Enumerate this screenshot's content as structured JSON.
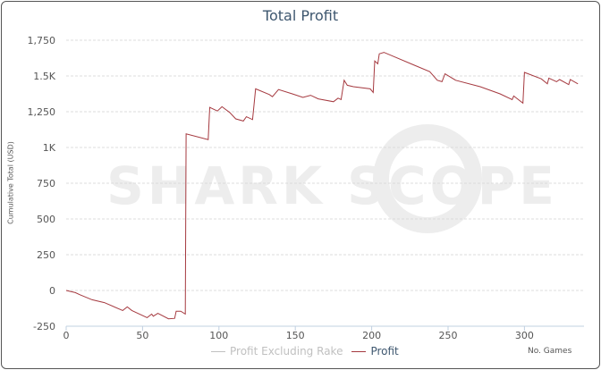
{
  "chart_data": {
    "type": "line",
    "title": "Total Profit",
    "xlabel": "No. Games",
    "ylabel": "Cumulative Total (USD)",
    "xlim": [
      0,
      339
    ],
    "ylim": [
      -250,
      1750
    ],
    "x_ticks": [
      "0",
      "50",
      "100",
      "150",
      "200",
      "250",
      "300"
    ],
    "x_tick_values": [
      0,
      50,
      100,
      150,
      200,
      250,
      300
    ],
    "y_ticks": [
      "-250",
      "0",
      "250",
      "500",
      "750",
      "1K",
      "1,250",
      "1.5K",
      "1,750"
    ],
    "y_tick_values": [
      -250,
      0,
      250,
      500,
      750,
      1000,
      1250,
      1500,
      1750
    ],
    "grid": true,
    "legend_placement": "bottom",
    "watermark": "SHARK SCOPE",
    "series": [
      {
        "name": "Profit Excluding Rake",
        "color": "#c0c0c0",
        "hidden": true,
        "x": [],
        "y": []
      },
      {
        "name": "Profit",
        "color": "#a5393f",
        "hidden": false,
        "x": [
          0,
          6,
          9,
          17,
          25,
          37,
          40,
          43,
          53,
          56,
          57,
          60,
          67,
          71,
          72,
          75,
          78,
          78.5,
          93,
          94,
          99,
          102,
          107,
          111,
          116,
          118,
          122,
          124,
          133,
          135,
          139,
          148,
          155,
          160,
          165,
          175,
          178,
          180,
          182,
          184,
          188,
          199,
          201,
          202,
          204,
          205,
          208,
          228,
          238,
          243,
          246,
          248,
          255,
          271,
          284,
          292,
          293,
          299,
          300,
          311,
          315,
          316,
          321,
          323,
          329,
          330,
          335
        ],
        "y": [
          0,
          -15,
          -30,
          -65,
          -85,
          -140,
          -115,
          -140,
          -190,
          -165,
          -180,
          -160,
          -198,
          -195,
          -145,
          -145,
          -165,
          1095,
          1055,
          1280,
          1255,
          1285,
          1245,
          1200,
          1185,
          1215,
          1195,
          1410,
          1370,
          1355,
          1405,
          1375,
          1350,
          1365,
          1340,
          1320,
          1345,
          1335,
          1470,
          1435,
          1425,
          1410,
          1385,
          1605,
          1585,
          1655,
          1665,
          1575,
          1530,
          1470,
          1460,
          1515,
          1470,
          1425,
          1375,
          1335,
          1360,
          1310,
          1525,
          1480,
          1445,
          1485,
          1460,
          1475,
          1440,
          1475,
          1445
        ]
      }
    ]
  }
}
